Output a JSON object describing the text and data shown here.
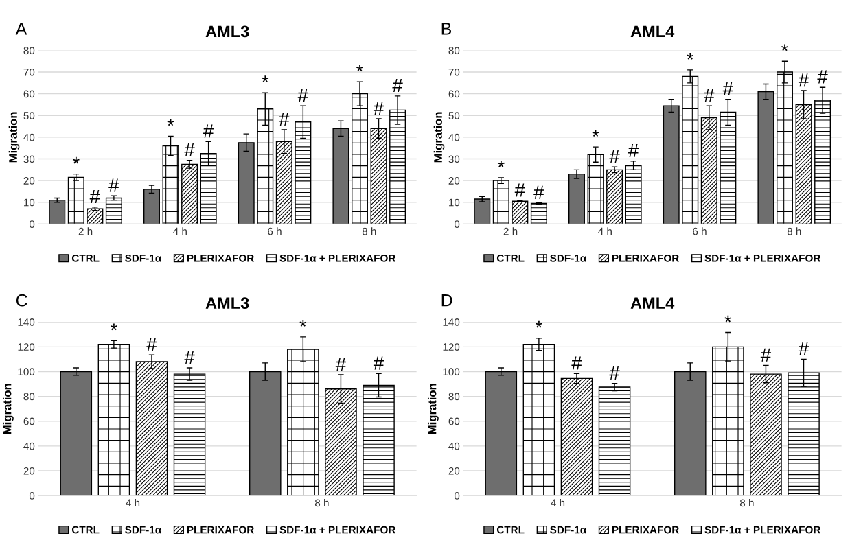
{
  "chart_data": [
    {
      "type": "bar",
      "title": "AML3",
      "ylabel": "Migration",
      "annotations": [
        "A"
      ],
      "categories": [
        "2 h",
        "4 h",
        "6 h",
        "8 h"
      ],
      "ylim": [
        0,
        80
      ],
      "yticks": [
        0,
        10,
        20,
        30,
        40,
        50,
        60,
        70,
        80
      ],
      "grid": "y",
      "legend": "bottom",
      "series": [
        {
          "name": "CTRL",
          "color": "#6e6e6e",
          "values": [
            11,
            16,
            37.5,
            44
          ],
          "errors": [
            1,
            1.8,
            4,
            3.5
          ]
        },
        {
          "name": "SDF-1α",
          "color": "#000000",
          "values": [
            21.5,
            36,
            53,
            60
          ],
          "errors": [
            1.5,
            4.5,
            7.5,
            5.5
          ],
          "value_labels": [
            "*",
            "*",
            "*",
            "*"
          ]
        },
        {
          "name": "PLERIXAFOR",
          "color": "#000000",
          "values": [
            7,
            27.5,
            38,
            44
          ],
          "errors": [
            0.8,
            1.8,
            5.5,
            4.5
          ],
          "value_labels": [
            "#",
            "#",
            "#",
            "#"
          ]
        },
        {
          "name": "SDF-1α + PLERIXAFOR",
          "color": "#000000",
          "values": [
            12,
            32.5,
            47,
            52.5
          ],
          "errors": [
            1,
            5.5,
            7.5,
            6.5
          ],
          "value_labels": [
            "#",
            "#",
            "#",
            "#"
          ]
        }
      ]
    },
    {
      "type": "bar",
      "title": "AML4",
      "ylabel": "Migration",
      "annotations": [
        "B"
      ],
      "categories": [
        "2 h",
        "4 h",
        "6 h",
        "8 h"
      ],
      "ylim": [
        0,
        80
      ],
      "yticks": [
        0,
        10,
        20,
        30,
        40,
        50,
        60,
        70,
        80
      ],
      "grid": "y",
      "legend": "bottom",
      "series": [
        {
          "name": "CTRL",
          "color": "#6e6e6e",
          "values": [
            11.5,
            23,
            54.5,
            61
          ],
          "errors": [
            1.2,
            2,
            3,
            3.5
          ]
        },
        {
          "name": "SDF-1α",
          "color": "#000000",
          "values": [
            20,
            32,
            68,
            70
          ],
          "errors": [
            1.3,
            3.5,
            3,
            5
          ],
          "value_labels": [
            "*",
            "*",
            "*",
            "*"
          ]
        },
        {
          "name": "PLERIXAFOR",
          "color": "#000000",
          "values": [
            10.5,
            25,
            49,
            55
          ],
          "errors": [
            0.3,
            1.3,
            5.5,
            6.5
          ],
          "value_labels": [
            "#",
            "#",
            "#",
            "#"
          ]
        },
        {
          "name": "SDF-1α + PLERIXAFOR",
          "color": "#000000",
          "values": [
            9.5,
            27,
            51.5,
            57
          ],
          "errors": [
            0.3,
            2,
            6,
            6
          ],
          "value_labels": [
            "#",
            "#",
            "#",
            "#"
          ]
        }
      ]
    },
    {
      "type": "bar",
      "title": "AML3",
      "ylabel": "Migration",
      "annotations": [
        "C"
      ],
      "categories": [
        "4 h",
        "8 h"
      ],
      "ylim": [
        0,
        140
      ],
      "yticks": [
        0,
        20,
        40,
        60,
        80,
        100,
        120,
        140
      ],
      "grid": "y",
      "legend": "bottom",
      "series": [
        {
          "name": "CTRL",
          "color": "#6e6e6e",
          "values": [
            100,
            100
          ],
          "errors": [
            3,
            7
          ]
        },
        {
          "name": "SDF-1α",
          "color": "#000000",
          "values": [
            122,
            118
          ],
          "errors": [
            3,
            10
          ],
          "value_labels": [
            "*",
            "*"
          ]
        },
        {
          "name": "PLERIXAFOR",
          "color": "#000000",
          "values": [
            108,
            86
          ],
          "errors": [
            5.5,
            11.5
          ],
          "value_labels": [
            "#",
            "#"
          ]
        },
        {
          "name": "SDF-1α + PLERIXAFOR",
          "color": "#000000",
          "values": [
            98,
            89
          ],
          "errors": [
            5,
            9.5
          ],
          "value_labels": [
            "#",
            "#"
          ]
        }
      ]
    },
    {
      "type": "bar",
      "title": "AML4",
      "ylabel": "Migration",
      "annotations": [
        "D"
      ],
      "categories": [
        "4 h",
        "8 h"
      ],
      "ylim": [
        0,
        140
      ],
      "yticks": [
        0,
        20,
        40,
        60,
        80,
        100,
        120,
        140
      ],
      "grid": "y",
      "legend": "bottom",
      "series": [
        {
          "name": "CTRL",
          "color": "#6e6e6e",
          "values": [
            100,
            100
          ],
          "errors": [
            3,
            7
          ]
        },
        {
          "name": "SDF-1α",
          "color": "#000000",
          "values": [
            122,
            120
          ],
          "errors": [
            5,
            11.5
          ],
          "value_labels": [
            "*",
            "*"
          ]
        },
        {
          "name": "PLERIXAFOR",
          "color": "#000000",
          "values": [
            94.5,
            98
          ],
          "errors": [
            4,
            7
          ],
          "value_labels": [
            "#",
            "#"
          ]
        },
        {
          "name": "SDF-1α + PLERIXAFOR",
          "color": "#000000",
          "values": [
            87.5,
            99
          ],
          "errors": [
            3,
            11
          ],
          "value_labels": [
            "#",
            "#"
          ]
        }
      ]
    }
  ]
}
